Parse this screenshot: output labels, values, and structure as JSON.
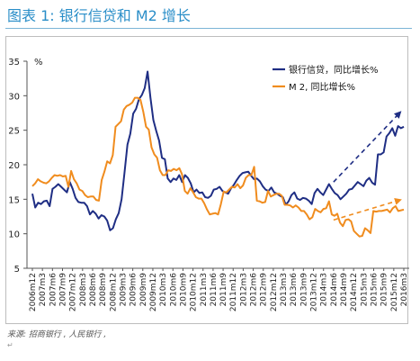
{
  "page": {
    "title": "图表 1: 银行信贷和 M2 增长",
    "source": "来源: 招商银行 , 人民银行 ,",
    "mark": "↵"
  },
  "colors": {
    "title": "#2a8ec8",
    "credit": "#1f2e84",
    "m2": "#f08c1e"
  },
  "chart_data": {
    "type": "line",
    "title": "",
    "xlabel": "",
    "ylabel": "%",
    "ylim": [
      5,
      35
    ],
    "yticks": [
      5,
      10,
      15,
      20,
      25,
      30,
      35
    ],
    "grid": false,
    "legend_position": "top-right",
    "x_start": "2006m12",
    "x_end": "2016m3",
    "xtick_labels": [
      "2006m12",
      "2007m3",
      "2007m6",
      "2007m9",
      "2007m12",
      "2008m3",
      "2008m6",
      "2008m9",
      "2008m12",
      "2009m3",
      "2009m6",
      "2009m9",
      "2009m12",
      "2010m3",
      "2010m6",
      "2010m9",
      "2010m12",
      "2011m3",
      "2011m6",
      "2011m9",
      "2011m12",
      "2012m3",
      "2012m6",
      "2012m9",
      "2012m12",
      "2013m3",
      "2013m6",
      "2013m9",
      "2013m12",
      "2014m3",
      "2014m6",
      "2014m9",
      "2014m12",
      "2015m3",
      "2015m6",
      "2015m9",
      "2015m12",
      "2016m3"
    ],
    "series": [
      {
        "name": "银行信贷，同比增长%",
        "color": "#1f2e84",
        "values": [
          15.8,
          13.8,
          14.5,
          14.3,
          14.7,
          14.8,
          14.0,
          16.5,
          16.8,
          17.2,
          16.8,
          16.4,
          16.0,
          17.5,
          16.5,
          15.2,
          14.6,
          14.5,
          14.5,
          14.0,
          12.8,
          13.3,
          12.9,
          12.2,
          12.7,
          12.5,
          11.9,
          10.5,
          10.8,
          12.1,
          13.0,
          15.0,
          18.8,
          22.9,
          24.5,
          27.4,
          28.1,
          29.5,
          30.1,
          31.1,
          33.5,
          29.7,
          26.5,
          24.9,
          23.5,
          21.0,
          20.8,
          18.0,
          17.5,
          18.0,
          17.8,
          18.5,
          17.5,
          18.5,
          18.1,
          17.3,
          16.0,
          16.4,
          15.9,
          16.0,
          15.3,
          15.2,
          15.5,
          16.4,
          16.5,
          16.8,
          16.2,
          16.0,
          15.8,
          16.6,
          17.1,
          17.8,
          18.4,
          18.8,
          18.9,
          19.0,
          18.4,
          17.9,
          18.0,
          17.6,
          16.9,
          16.4,
          16.2,
          16.7,
          16.0,
          15.8,
          15.5,
          15.3,
          14.2,
          14.7,
          15.6,
          16.0,
          15.1,
          14.9,
          15.2,
          15.1,
          14.8,
          14.3,
          15.9,
          16.5,
          16.0,
          15.6,
          16.4,
          17.2,
          16.5,
          15.9,
          15.6,
          15.0,
          15.4,
          15.8,
          16.4,
          16.5,
          17.0,
          17.5,
          17.2,
          16.9,
          17.7,
          18.1,
          17.4,
          17.1,
          21.5,
          21.5,
          21.8,
          24.1,
          24.6,
          25.3,
          24.2,
          25.6,
          25.3,
          25.5
        ]
      },
      {
        "name": "M 2, 同比增长%",
        "color": "#f08c1e",
        "values": [
          16.9,
          17.3,
          17.9,
          17.6,
          17.4,
          17.3,
          17.6,
          18.1,
          18.5,
          18.4,
          18.5,
          18.3,
          18.4,
          16.8,
          19.1,
          17.9,
          17.3,
          16.4,
          16.2,
          15.6,
          15.3,
          15.4,
          15.4,
          14.9,
          14.8,
          17.8,
          19.0,
          20.5,
          20.2,
          21.4,
          25.5,
          25.9,
          26.3,
          28.0,
          28.5,
          28.7,
          29.0,
          29.7,
          29.7,
          29.4,
          27.7,
          25.5,
          25.1,
          22.5,
          21.5,
          21.0,
          19.2,
          18.5,
          18.5,
          19.2,
          19.1,
          19.4,
          19.2,
          19.5,
          18.6,
          16.2,
          15.8,
          16.6,
          16.0,
          15.3,
          15.1,
          15.1,
          14.4,
          13.5,
          12.8,
          12.9,
          13.0,
          12.8,
          14.3,
          16.1,
          16.0,
          16.4,
          16.8,
          16.7,
          17.2,
          16.6,
          17.0,
          18.1,
          18.5,
          18.5,
          19.7,
          14.8,
          14.7,
          14.5,
          14.6,
          16.2,
          15.4,
          15.6,
          15.8,
          15.8,
          15.5,
          14.2,
          14.2,
          14.1,
          13.8,
          14.1,
          13.8,
          13.3,
          13.3,
          12.8,
          12.1,
          12.4,
          13.6,
          13.3,
          13.1,
          13.6,
          13.7,
          14.7,
          12.8,
          12.6,
          12.9,
          11.6,
          11.1,
          12.0,
          12.1,
          11.8,
          10.4,
          10.0,
          9.6,
          9.7,
          10.8,
          10.5,
          10.1,
          13.3,
          13.2,
          13.3,
          13.3,
          13.4,
          13.5,
          13.1,
          13.7,
          14.0,
          13.3,
          13.4,
          13.5
        ]
      }
    ],
    "annotations": [
      {
        "type": "dashed-arrow",
        "series": "银行信贷，同比增长%",
        "from": [
          "2014m6",
          17.5
        ],
        "to": [
          "2016m3",
          27.6
        ]
      },
      {
        "type": "dashed-arrow",
        "series": "M 2, 同比增长%",
        "from": [
          "2014m6",
          12.0
        ],
        "to": [
          "2016m3",
          14.9
        ]
      }
    ]
  }
}
